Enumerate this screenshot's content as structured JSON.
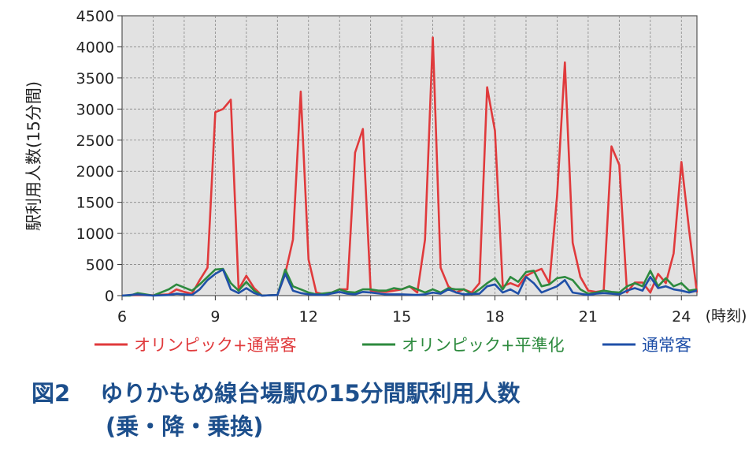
{
  "caption": {
    "figure_no": "図2",
    "title": "ゆりかもめ線台場駅の15分間駅利用人数",
    "subtitle": "(乗・降・乗換)"
  },
  "chart_data": {
    "type": "line",
    "ylabel": "駅利用人数(15分間)",
    "x_unit": "(時刻)",
    "xlim": [
      6,
      24.5
    ],
    "ylim": [
      0,
      4500
    ],
    "x_ticks": [
      "6",
      "9",
      "12",
      "15",
      "18",
      "21",
      "24"
    ],
    "y_ticks": [
      "0",
      "500",
      "1000",
      "1500",
      "2000",
      "2500",
      "3000",
      "3500",
      "4000",
      "4500"
    ],
    "grid": true,
    "legend_position": "bottom",
    "series": [
      {
        "name": "オリンピック+通常客",
        "color": "#e03a3c",
        "points": [
          [
            6,
            0
          ],
          [
            6.5,
            10
          ],
          [
            7,
            5
          ],
          [
            7.5,
            20
          ],
          [
            7.75,
            100
          ],
          [
            8,
            60
          ],
          [
            8.25,
            30
          ],
          [
            8.5,
            250
          ],
          [
            8.75,
            450
          ],
          [
            9,
            2950
          ],
          [
            9.25,
            3000
          ],
          [
            9.5,
            3150
          ],
          [
            9.75,
            100
          ],
          [
            10,
            320
          ],
          [
            10.25,
            120
          ],
          [
            10.5,
            0
          ],
          [
            11,
            10
          ],
          [
            11.25,
            350
          ],
          [
            11.5,
            900
          ],
          [
            11.75,
            3280
          ],
          [
            12,
            580
          ],
          [
            12.25,
            50
          ],
          [
            12.5,
            20
          ],
          [
            12.75,
            50
          ],
          [
            13,
            100
          ],
          [
            13.25,
            100
          ],
          [
            13.5,
            2300
          ],
          [
            13.75,
            2680
          ],
          [
            14,
            80
          ],
          [
            14.5,
            60
          ],
          [
            15,
            100
          ],
          [
            15.25,
            150
          ],
          [
            15.5,
            50
          ],
          [
            15.75,
            900
          ],
          [
            16,
            4150
          ],
          [
            16.25,
            450
          ],
          [
            16.5,
            150
          ],
          [
            16.75,
            50
          ],
          [
            17,
            100
          ],
          [
            17.25,
            50
          ],
          [
            17.5,
            200
          ],
          [
            17.75,
            3350
          ],
          [
            18,
            2650
          ],
          [
            18.25,
            150
          ],
          [
            18.5,
            200
          ],
          [
            18.75,
            150
          ],
          [
            19,
            320
          ],
          [
            19.25,
            380
          ],
          [
            19.5,
            430
          ],
          [
            19.75,
            200
          ],
          [
            20,
            1600
          ],
          [
            20.25,
            3750
          ],
          [
            20.5,
            850
          ],
          [
            20.75,
            300
          ],
          [
            21,
            80
          ],
          [
            21.25,
            60
          ],
          [
            21.5,
            80
          ],
          [
            21.75,
            2400
          ],
          [
            22,
            2100
          ],
          [
            22.25,
            50
          ],
          [
            22.5,
            210
          ],
          [
            22.75,
            210
          ],
          [
            23,
            50
          ],
          [
            23.25,
            350
          ],
          [
            23.5,
            200
          ],
          [
            23.75,
            680
          ],
          [
            24,
            2150
          ],
          [
            24.25,
            1050
          ],
          [
            24.5,
            50
          ]
        ]
      },
      {
        "name": "オリンピック+平準化",
        "color": "#2d8a3e",
        "points": [
          [
            6,
            0
          ],
          [
            6.25,
            0
          ],
          [
            6.5,
            40
          ],
          [
            7,
            0
          ],
          [
            7.5,
            100
          ],
          [
            7.75,
            180
          ],
          [
            8,
            130
          ],
          [
            8.25,
            80
          ],
          [
            8.5,
            180
          ],
          [
            8.75,
            300
          ],
          [
            9,
            420
          ],
          [
            9.25,
            430
          ],
          [
            9.5,
            200
          ],
          [
            9.75,
            80
          ],
          [
            10,
            220
          ],
          [
            10.25,
            80
          ],
          [
            10.5,
            0
          ],
          [
            11,
            10
          ],
          [
            11.25,
            420
          ],
          [
            11.5,
            150
          ],
          [
            11.75,
            100
          ],
          [
            12,
            50
          ],
          [
            12.25,
            20
          ],
          [
            12.75,
            50
          ],
          [
            13,
            100
          ],
          [
            13.25,
            60
          ],
          [
            13.5,
            50
          ],
          [
            13.75,
            100
          ],
          [
            14,
            100
          ],
          [
            14.25,
            80
          ],
          [
            14.5,
            80
          ],
          [
            14.75,
            120
          ],
          [
            15,
            100
          ],
          [
            15.25,
            150
          ],
          [
            15.5,
            100
          ],
          [
            15.75,
            50
          ],
          [
            16,
            100
          ],
          [
            16.25,
            50
          ],
          [
            16.5,
            120
          ],
          [
            16.75,
            100
          ],
          [
            17,
            100
          ],
          [
            17.25,
            20
          ],
          [
            17.5,
            100
          ],
          [
            17.75,
            200
          ],
          [
            18,
            280
          ],
          [
            18.25,
            100
          ],
          [
            18.5,
            300
          ],
          [
            18.75,
            220
          ],
          [
            19,
            380
          ],
          [
            19.25,
            400
          ],
          [
            19.5,
            150
          ],
          [
            19.75,
            180
          ],
          [
            20,
            280
          ],
          [
            20.25,
            300
          ],
          [
            20.5,
            250
          ],
          [
            20.75,
            100
          ],
          [
            21,
            30
          ],
          [
            21.25,
            50
          ],
          [
            21.5,
            80
          ],
          [
            21.75,
            60
          ],
          [
            22,
            50
          ],
          [
            22.25,
            150
          ],
          [
            22.5,
            200
          ],
          [
            22.75,
            150
          ],
          [
            23,
            400
          ],
          [
            23.25,
            150
          ],
          [
            23.5,
            280
          ],
          [
            23.75,
            150
          ],
          [
            24,
            200
          ],
          [
            24.25,
            80
          ],
          [
            24.5,
            100
          ]
        ]
      },
      {
        "name": "通常客",
        "color": "#2050a8",
        "points": [
          [
            6,
            0
          ],
          [
            6.5,
            20
          ],
          [
            7,
            0
          ],
          [
            7.5,
            10
          ],
          [
            7.75,
            30
          ],
          [
            8,
            20
          ],
          [
            8.25,
            10
          ],
          [
            8.5,
            100
          ],
          [
            8.75,
            250
          ],
          [
            9,
            350
          ],
          [
            9.25,
            420
          ],
          [
            9.5,
            100
          ],
          [
            9.75,
            40
          ],
          [
            10,
            120
          ],
          [
            10.25,
            40
          ],
          [
            10.5,
            0
          ],
          [
            11,
            10
          ],
          [
            11.25,
            350
          ],
          [
            11.5,
            80
          ],
          [
            11.75,
            40
          ],
          [
            12,
            20
          ],
          [
            12.5,
            10
          ],
          [
            13,
            60
          ],
          [
            13.25,
            30
          ],
          [
            13.5,
            20
          ],
          [
            13.75,
            60
          ],
          [
            14,
            50
          ],
          [
            14.5,
            20
          ],
          [
            15,
            20
          ],
          [
            15.5,
            10
          ],
          [
            15.75,
            20
          ],
          [
            16,
            50
          ],
          [
            16.25,
            30
          ],
          [
            16.5,
            100
          ],
          [
            16.75,
            50
          ],
          [
            17,
            20
          ],
          [
            17.5,
            30
          ],
          [
            17.75,
            150
          ],
          [
            18,
            180
          ],
          [
            18.25,
            50
          ],
          [
            18.5,
            100
          ],
          [
            18.75,
            30
          ],
          [
            19,
            300
          ],
          [
            19.25,
            200
          ],
          [
            19.5,
            50
          ],
          [
            19.75,
            100
          ],
          [
            20,
            150
          ],
          [
            20.25,
            250
          ],
          [
            20.5,
            50
          ],
          [
            20.75,
            30
          ],
          [
            21,
            10
          ],
          [
            21.25,
            30
          ],
          [
            21.5,
            40
          ],
          [
            21.75,
            30
          ],
          [
            22,
            20
          ],
          [
            22.25,
            80
          ],
          [
            22.5,
            120
          ],
          [
            22.75,
            80
          ],
          [
            23,
            300
          ],
          [
            23.25,
            120
          ],
          [
            23.5,
            150
          ],
          [
            23.75,
            100
          ],
          [
            24,
            80
          ],
          [
            24.25,
            50
          ],
          [
            24.5,
            80
          ]
        ]
      }
    ]
  }
}
